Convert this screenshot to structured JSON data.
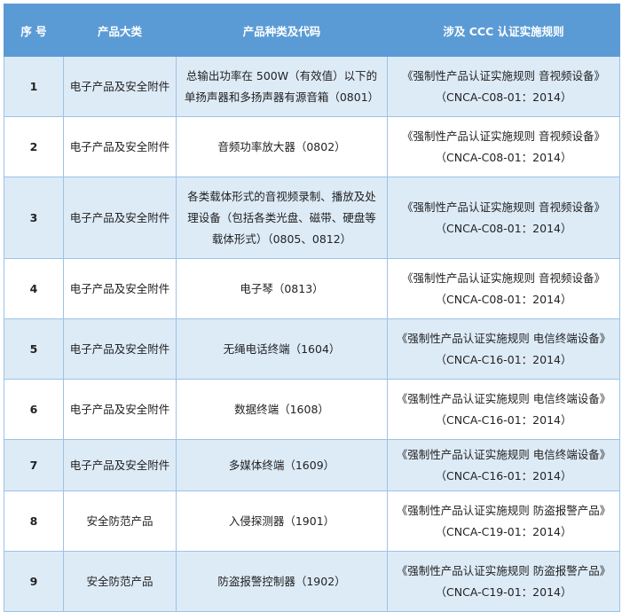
{
  "header": {
    "no": "序 号",
    "category": "产品大类",
    "product": "产品种类及代码",
    "rules": "涉及 CCC 认证实施规则"
  },
  "colors": {
    "header_bg": "#5B9BD5",
    "row_alt_bg": "#DDEBF7",
    "border": "#9DC3E6"
  },
  "rows": [
    {
      "no": "1",
      "category": "电子产品及安全附件",
      "product": [
        "总输出功率在 500W（有效值）以下的",
        "单扬声器和多扬声器有源音箱（0801）"
      ],
      "rules": [
        "《强制性产品认证实施规则 音视频设备》",
        "（CNCA-C08-01：2014）"
      ]
    },
    {
      "no": "2",
      "category": "电子产品及安全附件",
      "product": [
        "音频功率放大器（0802）"
      ],
      "rules": [
        "《强制性产品认证实施规则 音视频设备》",
        "（CNCA-C08-01：2014）"
      ]
    },
    {
      "no": "3",
      "category": "电子产品及安全附件",
      "product": [
        "各类载体形式的音视频录制、播放及处",
        "理设备（包括各类光盘、磁带、硬盘等",
        "载体形式）（0805、0812）"
      ],
      "rules": [
        "《强制性产品认证实施规则 音视频设备》",
        "（CNCA-C08-01：2014）"
      ]
    },
    {
      "no": "4",
      "category": "电子产品及安全附件",
      "product": [
        "电子琴（0813）"
      ],
      "rules": [
        "《强制性产品认证实施规则 音视频设备》",
        "（CNCA-C08-01：2014）"
      ]
    },
    {
      "no": "5",
      "category": "电子产品及安全附件",
      "product": [
        "无绳电话终端（1604）"
      ],
      "rules": [
        "《强制性产品认证实施规则 电信终端设备》",
        "（CNCA-C16-01：2014）"
      ]
    },
    {
      "no": "6",
      "category": "电子产品及安全附件",
      "product": [
        "数据终端（1608）"
      ],
      "rules": [
        "《强制性产品认证实施规则 电信终端设备》",
        "（CNCA-C16-01：2014）"
      ]
    },
    {
      "no": "7",
      "category": "电子产品及安全附件",
      "product": [
        "多媒体终端（1609）"
      ],
      "rules": [
        "《强制性产品认证实施规则 电信终端设备》",
        "（CNCA-C16-01：2014）"
      ]
    },
    {
      "no": "8",
      "category": "安全防范产品",
      "product": [
        "入侵探测器（1901）"
      ],
      "rules": [
        "《强制性产品认证实施规则 防盗报警产品》",
        "（CNCA-C19-01：2014）"
      ]
    },
    {
      "no": "9",
      "category": "安全防范产品",
      "product": [
        "防盗报警控制器（1902）"
      ],
      "rules": [
        "《强制性产品认证实施规则 防盗报警产品》",
        "（CNCA-C19-01：2014）"
      ]
    }
  ]
}
